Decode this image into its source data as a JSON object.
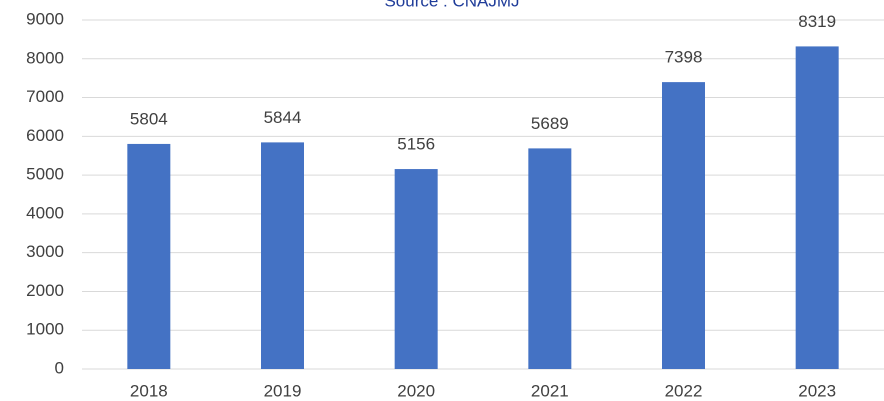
{
  "chart_data": {
    "type": "bar",
    "subtitle": "Source : CNAJMJ",
    "categories": [
      "2018",
      "2019",
      "2020",
      "2021",
      "2022",
      "2023"
    ],
    "values": [
      5804,
      5844,
      5156,
      5689,
      7398,
      8319
    ],
    "color": "#4472c4",
    "ylim": [
      0,
      9000
    ],
    "yticks": [
      0,
      1000,
      2000,
      3000,
      4000,
      5000,
      6000,
      7000,
      8000,
      9000
    ],
    "grid": true
  }
}
